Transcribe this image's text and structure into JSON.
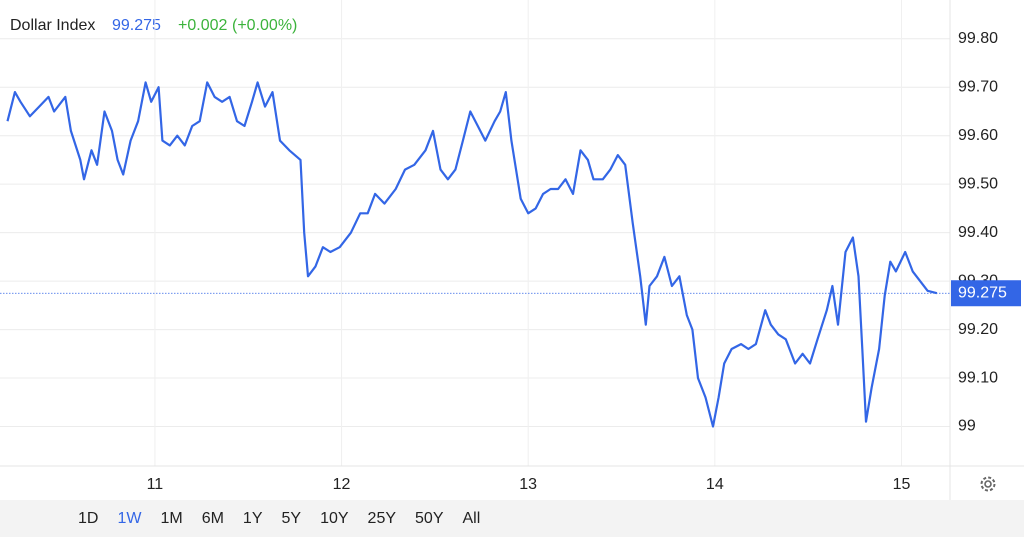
{
  "chart_data": {
    "type": "line",
    "title": "Dollar Index",
    "last_price": 99.275,
    "change": "+0.002",
    "change_pct": "(+0.00%)",
    "x": [
      10.21,
      10.25,
      10.28,
      10.33,
      10.38,
      10.43,
      10.46,
      10.52,
      10.55,
      10.6,
      10.62,
      10.66,
      10.69,
      10.73,
      10.77,
      10.8,
      10.83,
      10.87,
      10.91,
      10.95,
      10.98,
      11.02,
      11.04,
      11.08,
      11.12,
      11.16,
      11.2,
      11.24,
      11.28,
      11.32,
      11.36,
      11.4,
      11.44,
      11.48,
      11.52,
      11.55,
      11.59,
      11.63,
      11.67,
      11.72,
      11.78,
      11.8,
      11.82,
      11.86,
      11.9,
      11.94,
      11.99,
      12.05,
      12.1,
      12.14,
      12.18,
      12.23,
      12.29,
      12.34,
      12.39,
      12.45,
      12.49,
      12.53,
      12.57,
      12.61,
      12.65,
      12.69,
      12.73,
      12.77,
      12.82,
      12.85,
      12.88,
      12.91,
      12.96,
      13.0,
      13.04,
      13.08,
      13.12,
      13.16,
      13.2,
      13.24,
      13.28,
      13.32,
      13.35,
      13.4,
      13.44,
      13.48,
      13.52,
      13.56,
      13.6,
      13.63,
      13.65,
      13.69,
      13.73,
      13.77,
      13.81,
      13.85,
      13.88,
      13.91,
      13.95,
      13.99,
      14.02,
      14.05,
      14.09,
      14.14,
      14.18,
      14.22,
      14.27,
      14.3,
      14.34,
      14.38,
      14.43,
      14.47,
      14.51,
      14.55,
      14.6,
      14.63,
      14.66,
      14.7,
      14.74,
      14.77,
      14.79,
      14.81,
      14.84,
      14.88,
      14.91,
      14.94,
      14.97,
      15.02,
      15.06,
      15.1,
      15.14,
      15.19
    ],
    "series": [
      {
        "name": "Dollar Index",
        "color": "#3366e6",
        "values": [
          99.63,
          99.69,
          99.67,
          99.64,
          99.66,
          99.68,
          99.65,
          99.68,
          99.61,
          99.55,
          99.51,
          99.57,
          99.54,
          99.65,
          99.61,
          99.55,
          99.52,
          99.59,
          99.63,
          99.71,
          99.67,
          99.7,
          99.59,
          99.58,
          99.6,
          99.58,
          99.62,
          99.63,
          99.71,
          99.68,
          99.67,
          99.68,
          99.63,
          99.62,
          99.67,
          99.71,
          99.66,
          99.69,
          99.59,
          99.57,
          99.55,
          99.4,
          99.31,
          99.33,
          99.37,
          99.36,
          99.37,
          99.4,
          99.44,
          99.44,
          99.48,
          99.46,
          99.49,
          99.53,
          99.54,
          99.57,
          99.61,
          99.53,
          99.51,
          99.53,
          99.59,
          99.65,
          99.62,
          99.59,
          99.63,
          99.65,
          99.69,
          99.59,
          99.47,
          99.44,
          99.45,
          99.48,
          99.49,
          99.49,
          99.51,
          99.48,
          99.57,
          99.55,
          99.51,
          99.51,
          99.53,
          99.56,
          99.54,
          99.42,
          99.31,
          99.21,
          99.29,
          99.31,
          99.35,
          99.29,
          99.31,
          99.23,
          99.2,
          99.1,
          99.06,
          99.0,
          99.06,
          99.13,
          99.16,
          99.17,
          99.16,
          99.17,
          99.24,
          99.21,
          99.19,
          99.18,
          99.13,
          99.15,
          99.13,
          99.18,
          99.24,
          99.29,
          99.21,
          99.36,
          99.39,
          99.31,
          99.16,
          99.01,
          99.08,
          99.16,
          99.27,
          99.34,
          99.32,
          99.36,
          99.32,
          99.3,
          99.28,
          99.275
        ]
      }
    ],
    "xlim": [
      10.17,
      15.26
    ],
    "xticks": [
      11,
      12,
      13,
      14,
      15
    ],
    "ylim": [
      98.9,
      99.88
    ],
    "yticks": [
      {
        "value": 99.8,
        "label": "99.80"
      },
      {
        "value": 99.7,
        "label": "99.70"
      },
      {
        "value": 99.6,
        "label": "99.60"
      },
      {
        "value": 99.5,
        "label": "99.50"
      },
      {
        "value": 99.4,
        "label": "99.40"
      },
      {
        "value": 99.3,
        "label": "99.30"
      },
      {
        "value": 99.2,
        "label": "99.20"
      },
      {
        "value": 99.1,
        "label": "99.10"
      },
      99
    ],
    "grid": true
  },
  "range_buttons": {
    "items": [
      "1D",
      "1W",
      "1M",
      "6M",
      "1Y",
      "5Y",
      "10Y",
      "25Y",
      "50Y",
      "All"
    ],
    "active": "1W"
  }
}
